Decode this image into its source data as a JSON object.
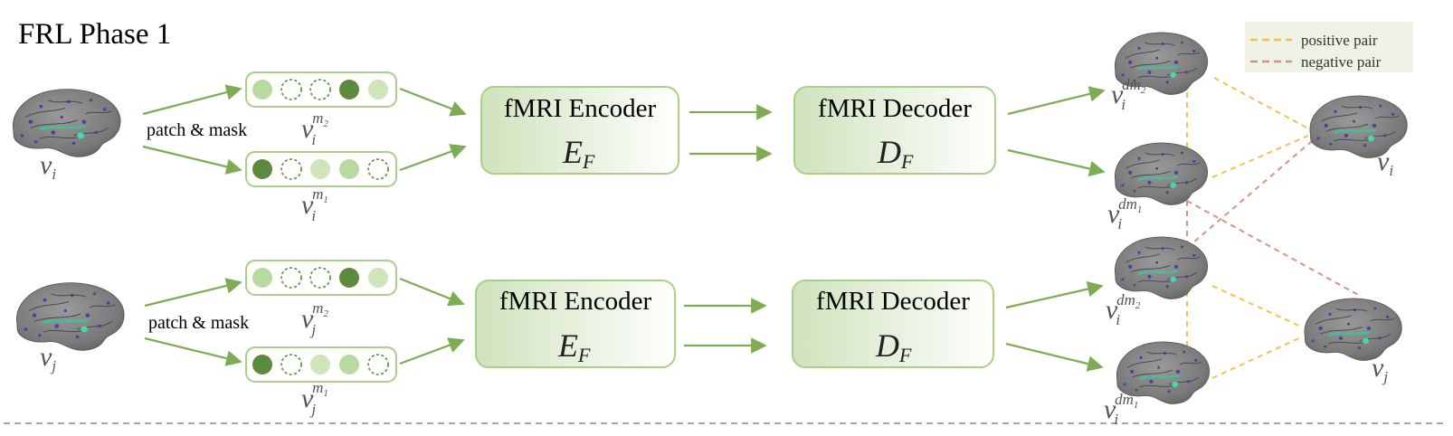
{
  "title": "FRL Phase 1",
  "colors": {
    "green_line": "#7eab54",
    "box_border": "#a9cf88",
    "dark_token": "#5d8a3f",
    "light_token": "#b9d9a0",
    "lighter_token": "#cde5b9",
    "positive": "#f2c14e",
    "negative": "#d99282",
    "legend_bg": "#eef3e6"
  },
  "legend": {
    "positive": "positive pair",
    "negative": "negative pair"
  },
  "patch_label": "patch & mask",
  "encoder": {
    "title": "fMRI  Encoder",
    "symbol": "E",
    "sub": "F"
  },
  "decoder": {
    "title": "fMRI  Decoder",
    "symbol": "D",
    "sub": "F"
  },
  "vars": {
    "v": "v",
    "i": "i",
    "j": "j",
    "m1": "m",
    "m1_sub": "1",
    "m2": "m",
    "m2_sub": "2",
    "dm": "dm",
    "dm1_sub": "1",
    "dm2_sub": "2"
  },
  "token_rows": {
    "top_m2": [
      "light",
      "empty",
      "empty",
      "dark",
      "lighter"
    ],
    "top_m1": [
      "dark",
      "empty",
      "lighter",
      "light",
      "empty"
    ],
    "bottom_m2": [
      "light",
      "empty",
      "empty",
      "dark",
      "lighter"
    ],
    "bottom_m1": [
      "dark",
      "empty",
      "lighter",
      "light",
      "empty"
    ]
  }
}
